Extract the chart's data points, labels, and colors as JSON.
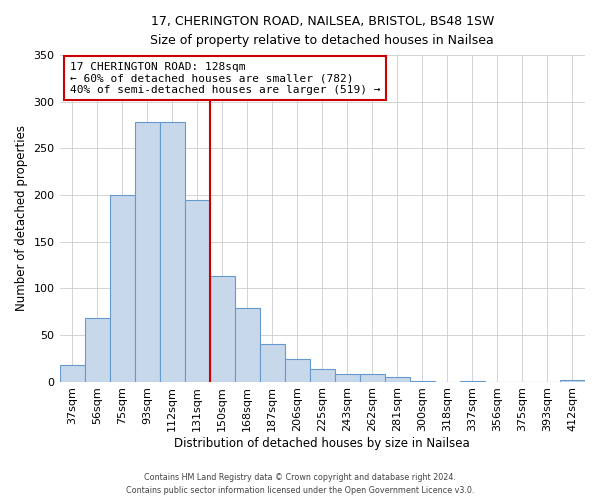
{
  "title_line1": "17, CHERINGTON ROAD, NAILSEA, BRISTOL, BS48 1SW",
  "title_line2": "Size of property relative to detached houses in Nailsea",
  "xlabel": "Distribution of detached houses by size in Nailsea",
  "ylabel": "Number of detached properties",
  "bar_labels": [
    "37sqm",
    "56sqm",
    "75sqm",
    "93sqm",
    "112sqm",
    "131sqm",
    "150sqm",
    "168sqm",
    "187sqm",
    "206sqm",
    "225sqm",
    "243sqm",
    "262sqm",
    "281sqm",
    "300sqm",
    "318sqm",
    "337sqm",
    "356sqm",
    "375sqm",
    "393sqm",
    "412sqm"
  ],
  "bar_values": [
    18,
    68,
    200,
    278,
    278,
    195,
    113,
    79,
    40,
    24,
    14,
    8,
    8,
    5,
    1,
    0,
    1,
    0,
    0,
    0,
    2
  ],
  "bar_color": "#c8d8eb",
  "bar_edge_color": "#6699cc",
  "vline_x_index": 5,
  "vline_color": "#cc0000",
  "annotation_title": "17 CHERINGTON ROAD: 128sqm",
  "annotation_line1": "← 60% of detached houses are smaller (782)",
  "annotation_line2": "40% of semi-detached houses are larger (519) →",
  "annotation_box_color": "#ffffff",
  "annotation_box_edge": "#cc0000",
  "ylim": [
    0,
    350
  ],
  "yticks": [
    0,
    50,
    100,
    150,
    200,
    250,
    300,
    350
  ],
  "footer_line1": "Contains HM Land Registry data © Crown copyright and database right 2024.",
  "footer_line2": "Contains public sector information licensed under the Open Government Licence v3.0."
}
